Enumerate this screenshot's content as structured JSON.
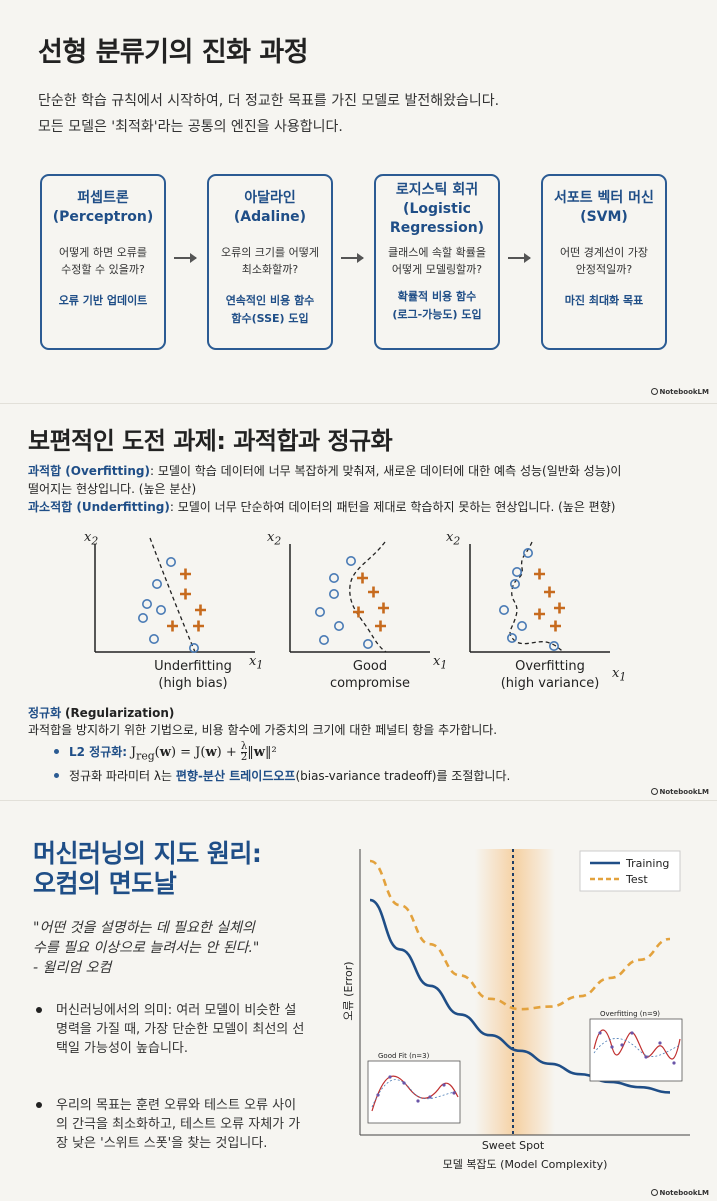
{
  "brand": "NotebookLM",
  "slide1": {
    "title": "선형 분류기의 진화 과정",
    "subtitle_line1": "단순한 학습 규칙에서 시작하여, 더 정교한 목표를 가진 모델로 발전해왔습니다.",
    "subtitle_line2": "모든 모델은 '최적화'라는 공통의 엔진을 사용합니다.",
    "cards": [
      {
        "title1": "퍼셉트론",
        "title2": "(Perceptron)",
        "title3": "",
        "q1": "어떻게 하면 오류를",
        "q2": "수정할 수 있을까?",
        "a1": "오류 기반 업데이트",
        "a2": ""
      },
      {
        "title1": "아달라인",
        "title2": "(Adaline)",
        "title3": "",
        "q1": "오류의 크기를 어떻게",
        "q2": "최소화할까?",
        "a1": "연속적인 비용 함수",
        "a2": "함수(SSE) 도입"
      },
      {
        "title1": "로지스틱 회귀",
        "title2": "(Logistic",
        "title3": "Regression)",
        "q1": "클래스에 속할 확률을",
        "q2": "어떻게 모델링할까?",
        "a1": "확률적 비용 함수",
        "a2": "(로그-가능도) 도입"
      },
      {
        "title1": "서포트 벡터 머신",
        "title2": "(SVM)",
        "title3": "",
        "q1": "어떤 경계선이 가장",
        "q2": "안정적일까?",
        "a1": "마진 최대화 목표",
        "a2": ""
      }
    ]
  },
  "slide2": {
    "title": "보편적인 도전 과제: 과적합과 정규화",
    "overfit_term": "과적합 (Overfitting)",
    "overfit_desc1": ": 모델이 학습 데이터에 너무 복잡하게 맞춰져, 새로운 데이터에 대한 예측 성능(일반화 성능)이",
    "overfit_desc2": "떨어지는 현상입니다. (높은 분산)",
    "underfit_term": "과소적합 (Underfitting)",
    "underfit_desc": ": 모델이 너무 단순하여 데이터의 패턴을 제대로 학습하지 못하는 현상입니다. (높은 편향)",
    "plots": [
      {
        "cap1": "Underfitting",
        "cap2": "(high bias)"
      },
      {
        "cap1": "Good",
        "cap2": "compromise"
      },
      {
        "cap1": "Overfitting",
        "cap2": "(high variance)"
      }
    ],
    "axis_x": "x",
    "axis_x_sub": "1",
    "axis_y": "x",
    "axis_y_sub": "2",
    "reg_term": "정규화",
    "reg_term_en": "(Regularization)",
    "reg_desc": "과적합을 방지하기 위한 기법으로, 비용 함수에 가중치의 크기에 대한 페널티 항을 추가합니다.",
    "bullet1_label": "L2 정규화:",
    "bullet2_pre": "정규화 파라미터 λ는 ",
    "bullet2_em": "편향-분산 트레이드오프",
    "bullet2_post": "(bias-variance tradeoff)를 조절합니다."
  },
  "slide3": {
    "title_line1": "머신러닝의 지도 원리:",
    "title_line2": "오컴의 면도날",
    "quote1": "\"어떤 것을 설명하는 데 필요한 실체의",
    "quote2": "수를 필요 이상으로 늘려서는 안 된다.\"",
    "quote3": "- 윌리엄 오컴",
    "bullet1": "머신러닝에서의 의미: 여러 모델이 비슷한 설명력을 가질 때, 가장 단순한 모델이 최선의 선택일 가능성이 높습니다.",
    "bullet2": "우리의 목표는 훈련 오류와 테스트 오류 사이의 간극을 최소화하고, 테스트 오류 자체가 가장 낮은 '스위트 스폿'을 찾는 것입니다.",
    "chart_data": {
      "type": "line",
      "xlabel": "모델 복잡도 (Model Complexity)",
      "ylabel": "오류 (Error)",
      "annotation": "Sweet Spot",
      "legend_position": "top-right",
      "series": [
        {
          "name": "Training",
          "color": "#1f4e87",
          "style": "solid",
          "values": [
            0.85,
            0.66,
            0.52,
            0.41,
            0.33,
            0.27,
            0.22,
            0.18,
            0.15,
            0.13,
            0.11
          ]
        },
        {
          "name": "Test",
          "color": "#e3a23d",
          "style": "dashed",
          "values": [
            1.0,
            0.83,
            0.68,
            0.56,
            0.47,
            0.43,
            0.44,
            0.48,
            0.55,
            0.62,
            0.7
          ]
        }
      ],
      "insets": [
        {
          "title": "Good Fit (n=3)"
        },
        {
          "title": "Overfitting (n=9)"
        }
      ]
    }
  }
}
